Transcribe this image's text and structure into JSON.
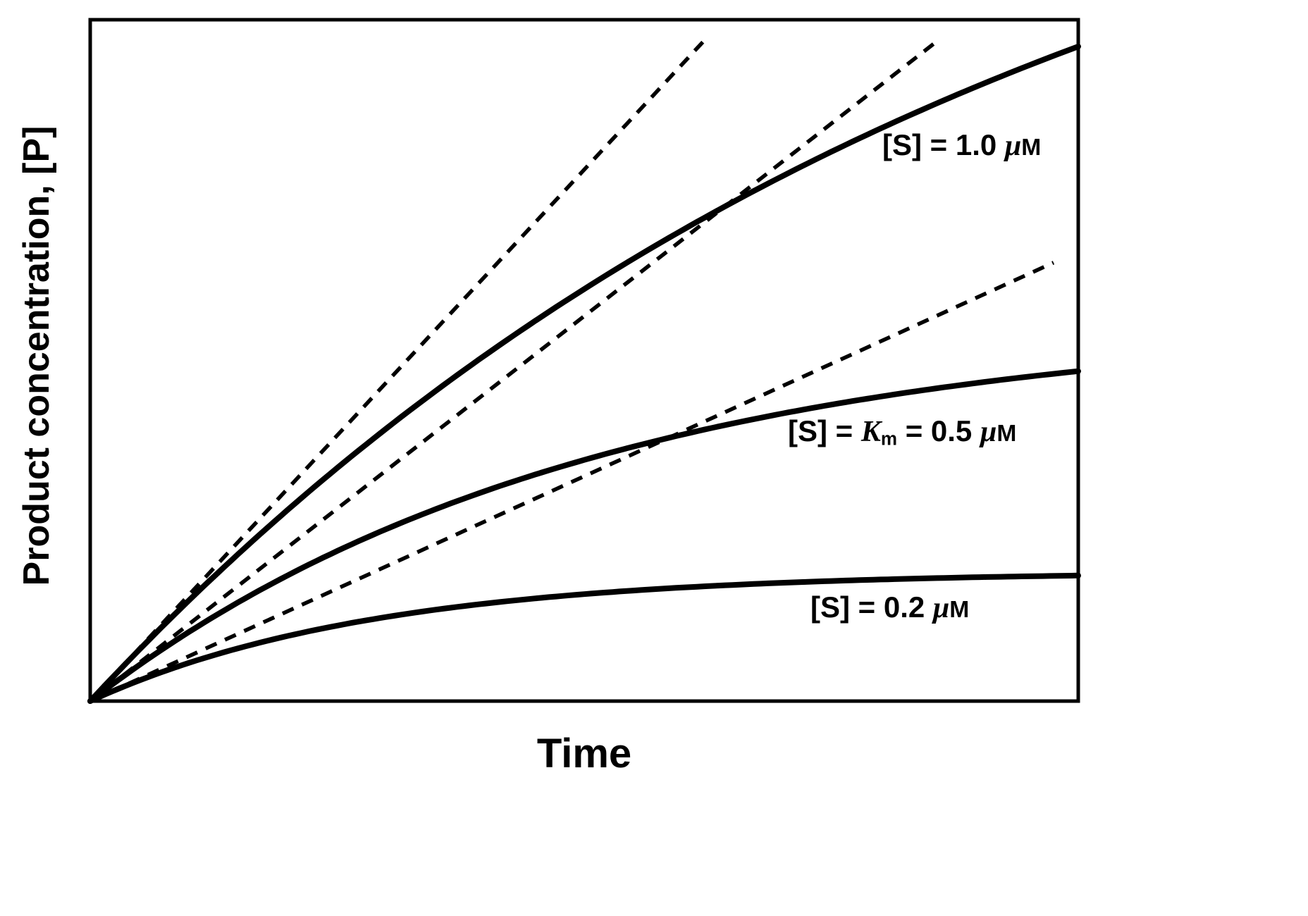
{
  "figure": {
    "background": "#ffffff",
    "ink_color": "#000000"
  },
  "chart_data": {
    "type": "line",
    "title": "",
    "xlabel": "Time",
    "ylabel": "Product concentration, [P]",
    "x_axis": {
      "range": [
        0,
        10
      ],
      "ticks": "none",
      "tick_labels": "none"
    },
    "y_axis": {
      "range": [
        0,
        1
      ],
      "ticks": "none",
      "tick_labels": "none"
    },
    "grid": false,
    "legend": "inline labels beside each curve",
    "frame": "full box, no tick marks",
    "t": [
      0,
      1,
      2,
      3,
      4,
      5,
      6,
      7,
      8,
      9,
      10
    ],
    "series": [
      {
        "id": "s1",
        "label": "[S] = 1.0 μM",
        "substrate_conc_uM": 1.0,
        "style": "solid",
        "model": "P(t) = A(1 - exp(-k t))",
        "A": 1.47,
        "k": 0.106,
        "P": [
          0,
          0.148,
          0.281,
          0.4,
          0.508,
          0.605,
          0.692,
          0.77,
          0.84,
          0.904,
          0.961
        ],
        "label_segments": [
          {
            "t": "[S] = 1.0 "
          },
          {
            "t": "μ",
            "style": "i"
          },
          {
            "t": "M",
            "style": "sc"
          }
        ]
      },
      {
        "id": "s2",
        "label": "[S] = Km = 0.5 μM",
        "substrate_conc_uM": 0.5,
        "style": "solid",
        "model": "P(t) = A(1 - exp(-k t))",
        "A": 0.56,
        "k": 0.2,
        "P": [
          0,
          0.102,
          0.185,
          0.253,
          0.308,
          0.354,
          0.391,
          0.422,
          0.447,
          0.467,
          0.484
        ],
        "label_segments": [
          {
            "t": "[S] = "
          },
          {
            "t": "K",
            "style": "bi"
          },
          {
            "t": "m",
            "style": "sub"
          },
          {
            "t": " = 0.5 "
          },
          {
            "t": "μ",
            "style": "i"
          },
          {
            "t": "M",
            "style": "sc"
          }
        ]
      },
      {
        "id": "s3",
        "label": "[S] = 0.2 μM",
        "substrate_conc_uM": 0.2,
        "style": "solid",
        "model": "P(t) = A(1 - exp(-k t))",
        "A": 0.19,
        "k": 0.35,
        "P": [
          0,
          0.056,
          0.096,
          0.124,
          0.143,
          0.157,
          0.167,
          0.174,
          0.178,
          0.182,
          0.184
        ],
        "label_segments": [
          {
            "t": "[S] = 0.2 "
          },
          {
            "t": "μ",
            "style": "i"
          },
          {
            "t": "M",
            "style": "sc"
          }
        ]
      }
    ],
    "initial_rate_tangents": [
      {
        "for": "s1",
        "style": "dashed",
        "slope": 0.156,
        "t_start": 0,
        "t_end": 6.2
      },
      {
        "for": "s2",
        "style": "dashed",
        "slope": 0.113,
        "t_start": 0,
        "t_end": 8.55
      },
      {
        "for": "s3",
        "style": "dashed",
        "slope": 0.066,
        "t_start": 0,
        "t_end": 9.75
      }
    ]
  }
}
